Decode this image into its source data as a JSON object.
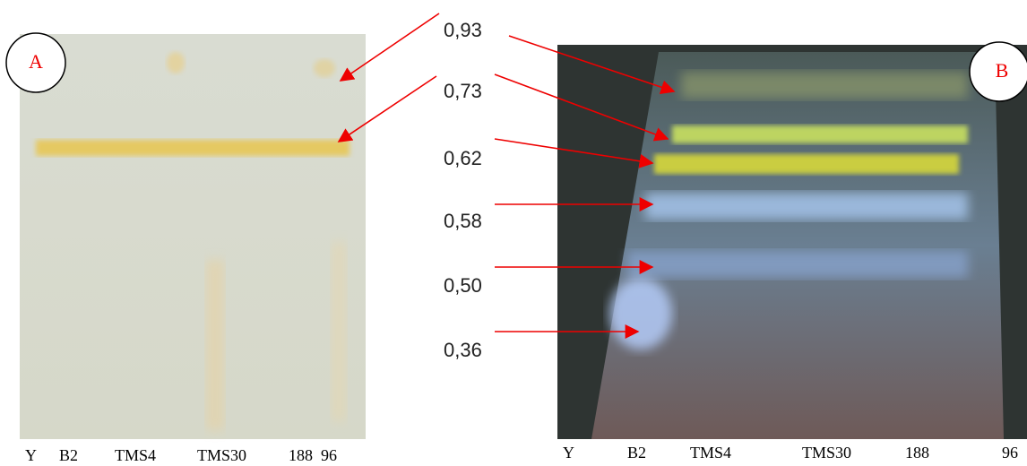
{
  "panels": [
    {
      "label": "A",
      "lanes": [
        "Y",
        "B2",
        "TMS4",
        "TMS30",
        "188",
        "96"
      ]
    },
    {
      "label": "B",
      "lanes": [
        "Y",
        "B2",
        "TMS4",
        "TMS30",
        "188",
        "96"
      ]
    }
  ],
  "rf_values": [
    "0,93",
    "0,73",
    "0,62",
    "0,58",
    "0,50",
    "0,36"
  ]
}
